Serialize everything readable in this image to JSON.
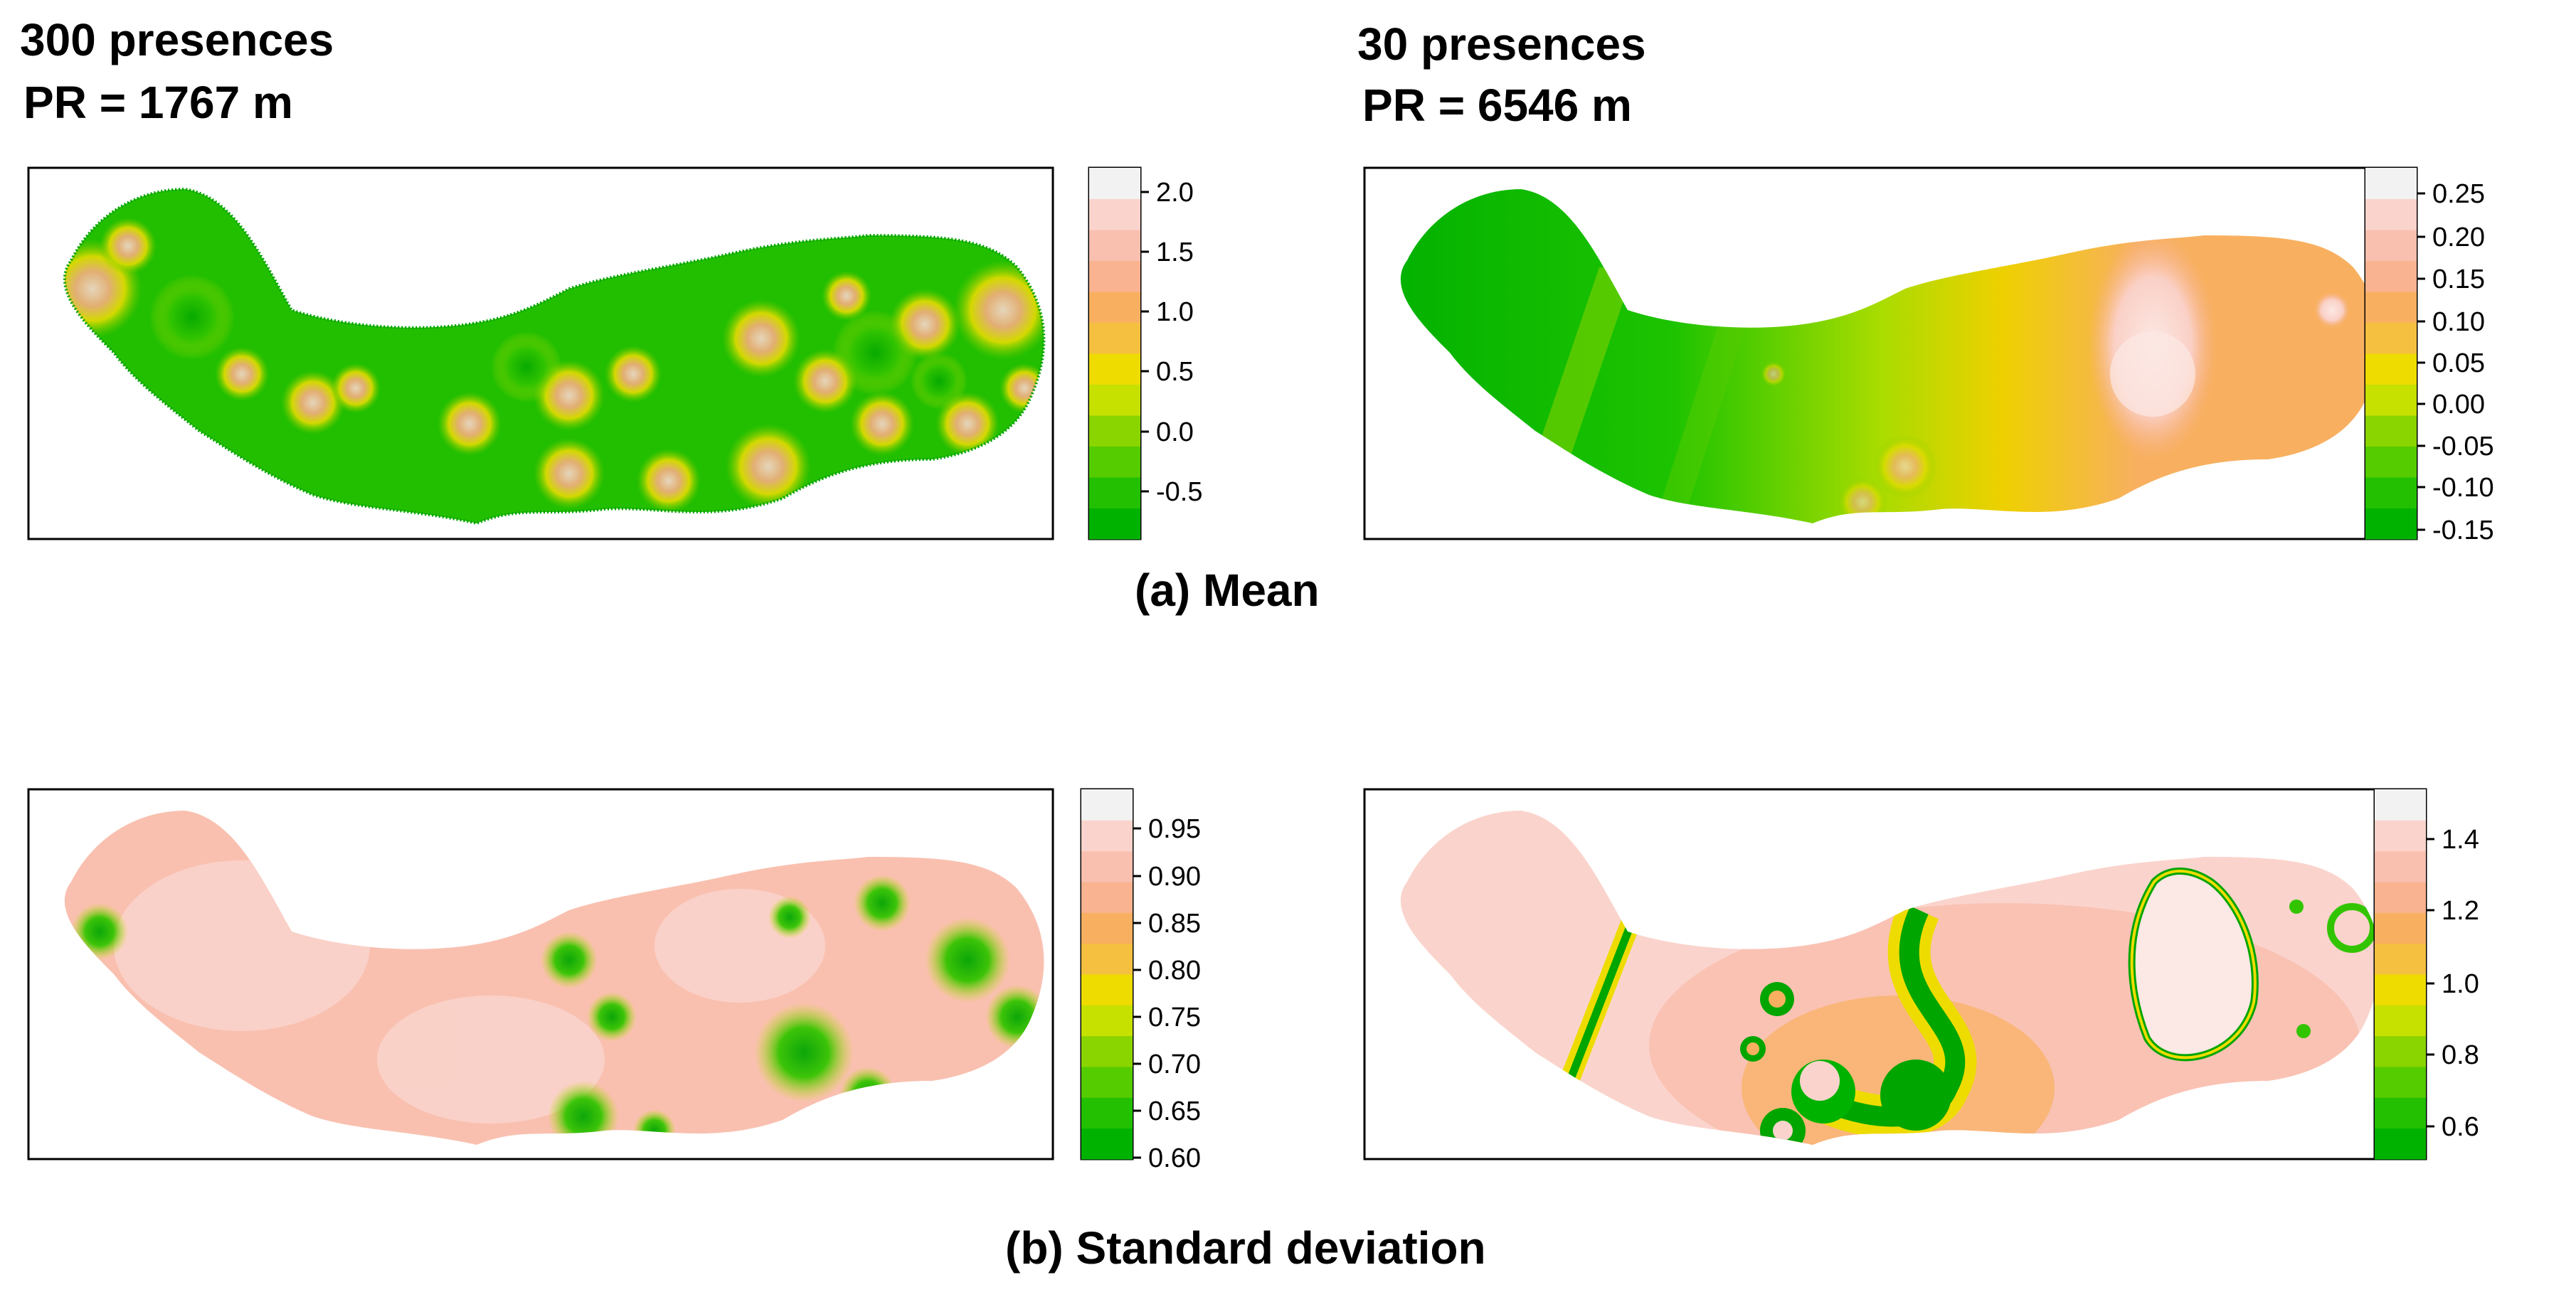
{
  "headings": {
    "left": {
      "line1": "300 presences",
      "line2": "PR = 1767 m"
    },
    "right": {
      "line1": "30 presences",
      "line2": "PR = 6546 m"
    }
  },
  "captions": {
    "mean": "(a) Mean",
    "sd": "(b) Standard deviation"
  },
  "palette": [
    "#00b200",
    "#22c000",
    "#55cc00",
    "#8ad400",
    "#c6e000",
    "#eedc00",
    "#f5c040",
    "#f8b060",
    "#f9b390",
    "#f9c0b0",
    "#fad4cc",
    "#f2f2f2"
  ],
  "maps": [
    {
      "id": "mean-300",
      "legend_ticks": [
        "2.0",
        "1.5",
        "1.0",
        "0.5",
        "0.0",
        "-0.5"
      ]
    },
    {
      "id": "mean-30",
      "legend_ticks": [
        "0.25",
        "0.20",
        "0.15",
        "0.10",
        "0.05",
        "0.00",
        "-0.05",
        "-0.10",
        "-0.15"
      ]
    },
    {
      "id": "sd-300",
      "legend_ticks": [
        "0.95",
        "0.90",
        "0.85",
        "0.80",
        "0.75",
        "0.70",
        "0.65",
        "0.60"
      ]
    },
    {
      "id": "sd-30",
      "legend_ticks": [
        "1.4",
        "1.2",
        "1.0",
        "0.8",
        "0.6"
      ]
    }
  ]
}
